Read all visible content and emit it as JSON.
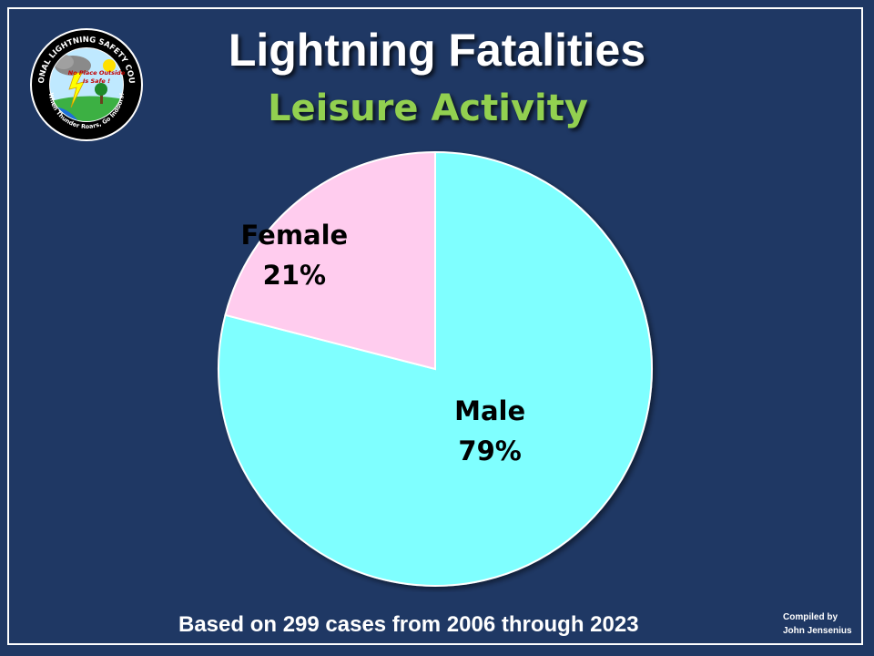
{
  "slide": {
    "title": "Lightning Fatalities",
    "subtitle": "Leisure Activity",
    "footnote": "Based on 299 cases from 2006 through 2023",
    "credit_line1": "Compiled by",
    "credit_line2": "John Jensenius",
    "background_color": "#1f3864",
    "subtitle_color": "#92d050"
  },
  "logo": {
    "ring_text": "NATIONAL LIGHTNING SAFETY COUNCIL",
    "bottom_text": "When Thunder Roars, Go Indoors!",
    "center_text_1": "No Place Outside",
    "center_text_2": "Is Safe !"
  },
  "chart_data": {
    "type": "pie",
    "title": "",
    "slices": [
      {
        "label": "Male",
        "value": 79,
        "value_label": "79%",
        "color": "#7fffff"
      },
      {
        "label": "Female",
        "value": 21,
        "value_label": "21%",
        "color": "#ffccee"
      }
    ],
    "legend": "none"
  }
}
